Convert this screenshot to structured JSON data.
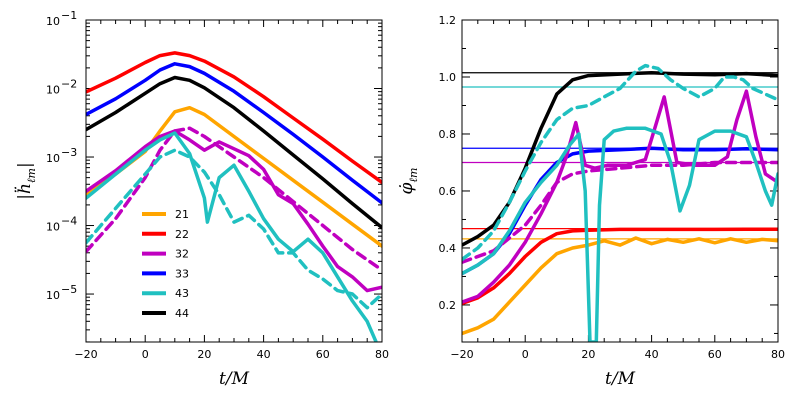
{
  "chart_data": [
    {
      "type": "line",
      "id": "left",
      "yscale": "log",
      "xlabel": "t/M",
      "ylabel": "|ḧ_ℓm|",
      "xlim": [
        -20,
        80
      ],
      "ylim_exp": [
        -5.7,
        -1
      ],
      "x_ticks": [
        -20,
        0,
        20,
        40,
        60,
        80
      ],
      "x_tick_labels": [
        "−20",
        "0",
        "20",
        "40",
        "60",
        "80"
      ],
      "y_ticks_exp": [
        -5,
        -4,
        -3,
        -2,
        -1
      ],
      "y_tick_labels": [
        {
          "base": "10",
          "exp": "−5"
        },
        {
          "base": "10",
          "exp": "−4"
        },
        {
          "base": "10",
          "exp": "−3"
        },
        {
          "base": "10",
          "exp": "−2"
        },
        {
          "base": "10",
          "exp": "−1"
        }
      ],
      "legend": {
        "placement": "lower-left",
        "entries": [
          {
            "label": "21",
            "color": "#ffa500"
          },
          {
            "label": "22",
            "color": "#ff0000"
          },
          {
            "label": "32",
            "color": "#c000c0"
          },
          {
            "label": "33",
            "color": "#0000ff"
          },
          {
            "label": "43",
            "color": "#20c0c0"
          },
          {
            "label": "44",
            "color": "#000000"
          }
        ]
      },
      "series": [
        {
          "name": "22",
          "color": "#ff0000",
          "style": "solid",
          "x": [
            -20,
            -10,
            0,
            5,
            10,
            15,
            20,
            30,
            40,
            50,
            60,
            70,
            80
          ],
          "log10_y": [
            -2.05,
            -1.85,
            -1.62,
            -1.52,
            -1.48,
            -1.52,
            -1.6,
            -1.83,
            -2.12,
            -2.43,
            -2.74,
            -3.06,
            -3.37
          ]
        },
        {
          "name": "33",
          "color": "#0000ff",
          "style": "solid",
          "x": [
            -20,
            -10,
            0,
            5,
            10,
            15,
            20,
            30,
            40,
            50,
            60,
            70,
            80
          ],
          "log10_y": [
            -2.38,
            -2.15,
            -1.88,
            -1.73,
            -1.64,
            -1.68,
            -1.78,
            -2.04,
            -2.35,
            -2.67,
            -3.0,
            -3.34,
            -3.67
          ]
        },
        {
          "name": "44",
          "color": "#000000",
          "style": "solid",
          "x": [
            -20,
            -10,
            0,
            5,
            10,
            15,
            20,
            30,
            40,
            50,
            60,
            70,
            80
          ],
          "log10_y": [
            -2.6,
            -2.35,
            -2.07,
            -1.93,
            -1.84,
            -1.88,
            -1.99,
            -2.28,
            -2.62,
            -2.97,
            -3.32,
            -3.68,
            -4.03
          ]
        },
        {
          "name": "21",
          "color": "#ffa500",
          "style": "solid",
          "x": [
            -20,
            -10,
            0,
            5,
            10,
            15,
            20,
            30,
            40,
            50,
            60,
            70,
            80
          ],
          "log10_y": [
            -3.55,
            -3.25,
            -2.92,
            -2.62,
            -2.34,
            -2.28,
            -2.38,
            -2.7,
            -3.02,
            -3.34,
            -3.66,
            -3.98,
            -4.3
          ]
        },
        {
          "name": "32",
          "color": "#c000c0",
          "style": "solid",
          "x": [
            -20,
            -10,
            0,
            5,
            10,
            15,
            20,
            25,
            30,
            35,
            40,
            45,
            50,
            55,
            60,
            65,
            70,
            75,
            80
          ],
          "log10_y": [
            -3.5,
            -3.2,
            -2.85,
            -2.7,
            -2.62,
            -2.75,
            -2.9,
            -2.78,
            -2.88,
            -2.98,
            -3.18,
            -3.55,
            -3.68,
            -3.98,
            -4.3,
            -4.6,
            -4.75,
            -4.95,
            -4.9
          ]
        },
        {
          "name": "32 (dashed)",
          "color": "#c000c0",
          "style": "dashed",
          "x": [
            -20,
            -10,
            0,
            5,
            10,
            15,
            20,
            30,
            40,
            50,
            60,
            70,
            80
          ],
          "log10_y": [
            -4.38,
            -3.9,
            -3.3,
            -2.9,
            -2.62,
            -2.58,
            -2.7,
            -3.0,
            -3.3,
            -3.65,
            -4.0,
            -4.35,
            -4.65
          ]
        },
        {
          "name": "43",
          "color": "#20c0c0",
          "style": "solid",
          "x": [
            -20,
            -10,
            0,
            5,
            10,
            15,
            20,
            21,
            25,
            30,
            35,
            40,
            45,
            50,
            55,
            60,
            65,
            70,
            75,
            78
          ],
          "log10_y": [
            -3.6,
            -3.25,
            -2.9,
            -2.75,
            -2.65,
            -2.95,
            -3.6,
            -3.95,
            -3.3,
            -3.12,
            -3.5,
            -3.9,
            -4.2,
            -4.38,
            -4.2,
            -4.4,
            -4.75,
            -5.1,
            -5.4,
            -5.7
          ]
        },
        {
          "name": "43 (dashed)",
          "color": "#20c0c0",
          "style": "dashed",
          "x": [
            -20,
            -10,
            0,
            5,
            10,
            15,
            20,
            25,
            30,
            35,
            40,
            45,
            50,
            55,
            60,
            65,
            70,
            75,
            80
          ],
          "log10_y": [
            -4.25,
            -3.75,
            -3.25,
            -3.0,
            -2.9,
            -3.0,
            -3.22,
            -3.55,
            -3.95,
            -3.85,
            -4.05,
            -4.4,
            -4.4,
            -4.65,
            -4.78,
            -4.95,
            -5.0,
            -5.2,
            -5.0
          ]
        }
      ]
    },
    {
      "type": "line",
      "id": "right",
      "yscale": "linear",
      "xlabel": "t/M",
      "ylabel": "φ̇_ℓm",
      "xlim": [
        -20,
        80
      ],
      "ylim": [
        0.07,
        1.2
      ],
      "x_ticks": [
        -20,
        0,
        20,
        40,
        60,
        80
      ],
      "x_tick_labels": [
        "−20",
        "0",
        "20",
        "40",
        "60",
        "80"
      ],
      "y_ticks": [
        0.2,
        0.4,
        0.6,
        0.8,
        1.0,
        1.2
      ],
      "y_tick_labels": [
        "0.2",
        "0.4",
        "0.6",
        "0.8",
        "1.0",
        "1.2"
      ],
      "reference_lines": [
        {
          "y": 1.015,
          "color": "#000000"
        },
        {
          "y": 0.965,
          "color": "#20c0c0"
        },
        {
          "y": 0.75,
          "color": "#0000ff"
        },
        {
          "y": 0.7,
          "color": "#c000c0"
        },
        {
          "y": 0.468,
          "color": "#ff0000"
        },
        {
          "y": 0.432,
          "color": "#ffa500"
        }
      ],
      "series": [
        {
          "name": "44",
          "color": "#000000",
          "style": "solid",
          "x": [
            -20,
            -15,
            -10,
            -5,
            0,
            5,
            10,
            15,
            20,
            30,
            40,
            50,
            60,
            70,
            80
          ],
          "y": [
            0.41,
            0.44,
            0.48,
            0.56,
            0.68,
            0.82,
            0.94,
            0.99,
            1.005,
            1.01,
            1.015,
            1.01,
            1.008,
            1.012,
            1.005
          ]
        },
        {
          "name": "33",
          "color": "#0000ff",
          "style": "solid",
          "x": [
            -20,
            -15,
            -10,
            -5,
            0,
            5,
            10,
            15,
            20,
            30,
            40,
            50,
            60,
            70,
            80
          ],
          "y": [
            0.31,
            0.34,
            0.38,
            0.45,
            0.55,
            0.64,
            0.7,
            0.73,
            0.74,
            0.745,
            0.75,
            0.745,
            0.745,
            0.748,
            0.745
          ]
        },
        {
          "name": "22",
          "color": "#ff0000",
          "style": "solid",
          "x": [
            -20,
            -15,
            -10,
            -5,
            0,
            5,
            10,
            15,
            20,
            30,
            40,
            50,
            60,
            70,
            80
          ],
          "y": [
            0.205,
            0.225,
            0.26,
            0.31,
            0.37,
            0.42,
            0.45,
            0.46,
            0.462,
            0.465,
            0.465,
            0.465,
            0.465,
            0.466,
            0.466
          ]
        },
        {
          "name": "21",
          "color": "#ffa500",
          "style": "solid",
          "x": [
            -20,
            -15,
            -10,
            -5,
            0,
            5,
            10,
            15,
            20,
            25,
            30,
            35,
            40,
            45,
            50,
            55,
            60,
            65,
            70,
            75,
            80
          ],
          "y": [
            0.1,
            0.12,
            0.15,
            0.21,
            0.27,
            0.33,
            0.38,
            0.4,
            0.41,
            0.425,
            0.41,
            0.435,
            0.415,
            0.43,
            0.42,
            0.432,
            0.418,
            0.432,
            0.42,
            0.43,
            0.425
          ]
        },
        {
          "name": "32",
          "color": "#c000c0",
          "style": "solid",
          "x": [
            -20,
            -15,
            -10,
            -5,
            0,
            5,
            10,
            13,
            16,
            19,
            22,
            26,
            32,
            38,
            41,
            44,
            48,
            54,
            60,
            64,
            67,
            70,
            73,
            76,
            80
          ],
          "y": [
            0.21,
            0.23,
            0.28,
            0.34,
            0.42,
            0.52,
            0.63,
            0.72,
            0.84,
            0.69,
            0.68,
            0.69,
            0.69,
            0.71,
            0.82,
            0.93,
            0.7,
            0.69,
            0.69,
            0.72,
            0.85,
            0.95,
            0.79,
            0.66,
            0.63
          ]
        },
        {
          "name": "32 (dashed)",
          "color": "#c000c0",
          "style": "dashed",
          "x": [
            -20,
            -10,
            0,
            5,
            10,
            15,
            20,
            30,
            40,
            50,
            60,
            70,
            80
          ],
          "y": [
            0.35,
            0.39,
            0.48,
            0.55,
            0.63,
            0.66,
            0.67,
            0.68,
            0.69,
            0.69,
            0.7,
            0.7,
            0.7
          ]
        },
        {
          "name": "43",
          "color": "#20c0c0",
          "style": "solid",
          "x": [
            -20,
            -15,
            -10,
            -5,
            0,
            5,
            10,
            14,
            17,
            19,
            20.5,
            21.5,
            22.5,
            23.5,
            25,
            28,
            32,
            38,
            43,
            46,
            49,
            52,
            55,
            60,
            65,
            70,
            73,
            76,
            78,
            80
          ],
          "y": [
            0.31,
            0.34,
            0.38,
            0.46,
            0.56,
            0.63,
            0.69,
            0.76,
            0.8,
            0.6,
            0.07,
            0.07,
            0.07,
            0.55,
            0.78,
            0.81,
            0.82,
            0.82,
            0.8,
            0.7,
            0.53,
            0.62,
            0.78,
            0.81,
            0.81,
            0.79,
            0.7,
            0.6,
            0.55,
            0.66
          ]
        },
        {
          "name": "43 (dashed)",
          "color": "#20c0c0",
          "style": "dashed",
          "x": [
            -20,
            -15,
            -10,
            -5,
            0,
            5,
            10,
            15,
            20,
            25,
            30,
            35,
            38,
            42,
            46,
            50,
            55,
            60,
            63,
            66,
            69,
            72,
            76,
            80
          ],
          "y": [
            0.36,
            0.4,
            0.46,
            0.56,
            0.67,
            0.77,
            0.85,
            0.89,
            0.9,
            0.93,
            0.96,
            1.02,
            1.04,
            1.03,
            0.99,
            0.96,
            0.93,
            0.96,
            1.0,
            1.0,
            0.99,
            0.96,
            0.94,
            0.92
          ]
        }
      ]
    }
  ]
}
